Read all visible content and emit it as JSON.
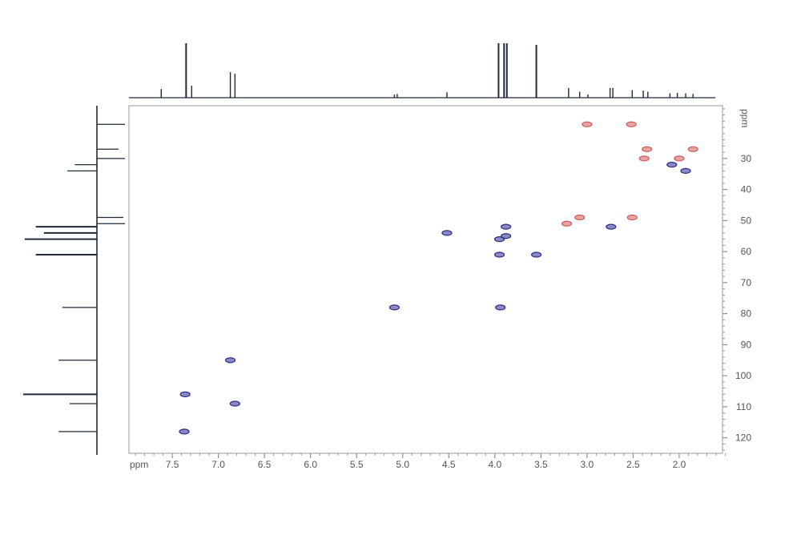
{
  "chart_data": {
    "type": "scatter",
    "title": "",
    "xlabel": "ppm",
    "ylabel": "ppm",
    "x_axis": {
      "reversed": true,
      "range": [
        7.97,
        1.53
      ],
      "ticks": [
        {
          "value": 7.5,
          "label": "7.5"
        },
        {
          "value": 7.0,
          "label": "7.0"
        },
        {
          "value": 6.5,
          "label": "6.5"
        },
        {
          "value": 6.0,
          "label": "6.0"
        },
        {
          "value": 5.5,
          "label": "5.5"
        },
        {
          "value": 5.0,
          "label": "5.0"
        },
        {
          "value": 4.5,
          "label": "4.5"
        },
        {
          "value": 4.0,
          "label": "4.0"
        },
        {
          "value": 3.5,
          "label": "3.5"
        },
        {
          "value": 3.0,
          "label": "3.0"
        },
        {
          "value": 2.5,
          "label": "2.5"
        },
        {
          "value": 2.0,
          "label": "2.0"
        }
      ]
    },
    "y_axis": {
      "position": "right",
      "range": [
        13,
        125
      ],
      "ticks": [
        {
          "value": 30,
          "label": "30"
        },
        {
          "value": 40,
          "label": "40"
        },
        {
          "value": 50,
          "label": "50"
        },
        {
          "value": 60,
          "label": "60"
        },
        {
          "value": 70,
          "label": "70"
        },
        {
          "value": 80,
          "label": "80"
        },
        {
          "value": 90,
          "label": "90"
        },
        {
          "value": 100,
          "label": "100"
        },
        {
          "value": 110,
          "label": "110"
        },
        {
          "value": 120,
          "label": "120"
        }
      ]
    },
    "grid": false,
    "colors": {
      "positive": "#d05a5a",
      "negative": "#2b2b8f",
      "trace": "#1f2a3a"
    },
    "series": [
      {
        "color": "#2b2b8f",
        "points": [
          {
            "x": 7.36,
            "y": 106
          },
          {
            "x": 7.37,
            "y": 118
          },
          {
            "x": 6.87,
            "y": 95
          },
          {
            "x": 6.82,
            "y": 109
          },
          {
            "x": 5.09,
            "y": 78
          },
          {
            "x": 4.52,
            "y": 54
          },
          {
            "x": 3.94,
            "y": 78
          },
          {
            "x": 3.95,
            "y": 56
          },
          {
            "x": 3.95,
            "y": 61
          },
          {
            "x": 3.88,
            "y": 52
          },
          {
            "x": 3.88,
            "y": 55
          },
          {
            "x": 3.55,
            "y": 61
          },
          {
            "x": 2.74,
            "y": 52
          },
          {
            "x": 2.08,
            "y": 32
          },
          {
            "x": 1.93,
            "y": 34
          }
        ]
      },
      {
        "color": "#d05a5a",
        "points": [
          {
            "x": 3.0,
            "y": 19
          },
          {
            "x": 2.52,
            "y": 19
          },
          {
            "x": 2.35,
            "y": 27
          },
          {
            "x": 1.85,
            "y": 27
          },
          {
            "x": 2.38,
            "y": 30
          },
          {
            "x": 2.0,
            "y": 30
          },
          {
            "x": 3.08,
            "y": 49
          },
          {
            "x": 2.51,
            "y": 49
          },
          {
            "x": 3.22,
            "y": 51
          }
        ]
      }
    ],
    "top_projection": [
      {
        "x": 7.62,
        "h": 0.16
      },
      {
        "x": 7.35,
        "h": 1.0
      },
      {
        "x": 7.29,
        "h": 0.22
      },
      {
        "x": 6.87,
        "h": 0.47
      },
      {
        "x": 6.82,
        "h": 0.44
      },
      {
        "x": 5.09,
        "h": 0.06
      },
      {
        "x": 5.06,
        "h": 0.07
      },
      {
        "x": 4.52,
        "h": 0.1
      },
      {
        "x": 3.96,
        "h": 1.0
      },
      {
        "x": 3.9,
        "h": 1.0
      },
      {
        "x": 3.87,
        "h": 1.0
      },
      {
        "x": 3.55,
        "h": 0.97
      },
      {
        "x": 3.2,
        "h": 0.18
      },
      {
        "x": 3.08,
        "h": 0.11
      },
      {
        "x": 2.99,
        "h": 0.06
      },
      {
        "x": 2.75,
        "h": 0.18
      },
      {
        "x": 2.72,
        "h": 0.18
      },
      {
        "x": 2.51,
        "h": 0.14
      },
      {
        "x": 2.39,
        "h": 0.13
      },
      {
        "x": 2.34,
        "h": 0.11
      },
      {
        "x": 2.1,
        "h": 0.08
      },
      {
        "x": 2.02,
        "h": 0.09
      },
      {
        "x": 1.93,
        "h": 0.08
      },
      {
        "x": 1.85,
        "h": 0.07
      }
    ],
    "left_projection": [
      {
        "y": 19,
        "h": 0.35,
        "dir": "right"
      },
      {
        "y": 27,
        "h": 0.27,
        "dir": "right"
      },
      {
        "y": 30,
        "h": 0.35,
        "dir": "right"
      },
      {
        "y": 32,
        "h": 0.3,
        "dir": "left"
      },
      {
        "y": 34,
        "h": 0.4,
        "dir": "left"
      },
      {
        "y": 49,
        "h": 0.33,
        "dir": "right"
      },
      {
        "y": 51,
        "h": 0.35,
        "dir": "right"
      },
      {
        "y": 52,
        "h": 0.83,
        "dir": "left"
      },
      {
        "y": 54,
        "h": 0.72,
        "dir": "left"
      },
      {
        "y": 56,
        "h": 0.98,
        "dir": "left"
      },
      {
        "y": 61,
        "h": 0.83,
        "dir": "left"
      },
      {
        "y": 78,
        "h": 0.47,
        "dir": "left"
      },
      {
        "y": 95,
        "h": 0.52,
        "dir": "left"
      },
      {
        "y": 106,
        "h": 1.0,
        "dir": "left"
      },
      {
        "y": 109,
        "h": 0.37,
        "dir": "left"
      },
      {
        "y": 118,
        "h": 0.52,
        "dir": "left"
      }
    ]
  }
}
